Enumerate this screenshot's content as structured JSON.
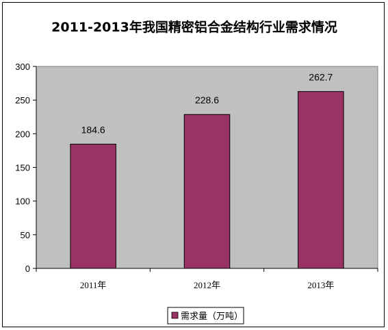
{
  "chart_data": {
    "type": "bar",
    "title": "2011-2013年我国精密铝合金结构行业需求情况",
    "categories": [
      "2011年",
      "2012年",
      "2013年"
    ],
    "series": [
      {
        "name": "需求量（万吨）",
        "values": [
          184.6,
          228.6,
          262.7
        ],
        "labels": [
          "184.6",
          "228.6",
          "262.7"
        ]
      }
    ],
    "xlabel": "",
    "ylabel": "",
    "ylim": [
      0,
      300
    ],
    "yticks": [
      0,
      50,
      100,
      150,
      200,
      250,
      300
    ],
    "grid": false,
    "legend_position": "bottom",
    "colors": {
      "bar": "#993366",
      "plot_background": "#c0c0c0",
      "axis": "#000000"
    }
  }
}
